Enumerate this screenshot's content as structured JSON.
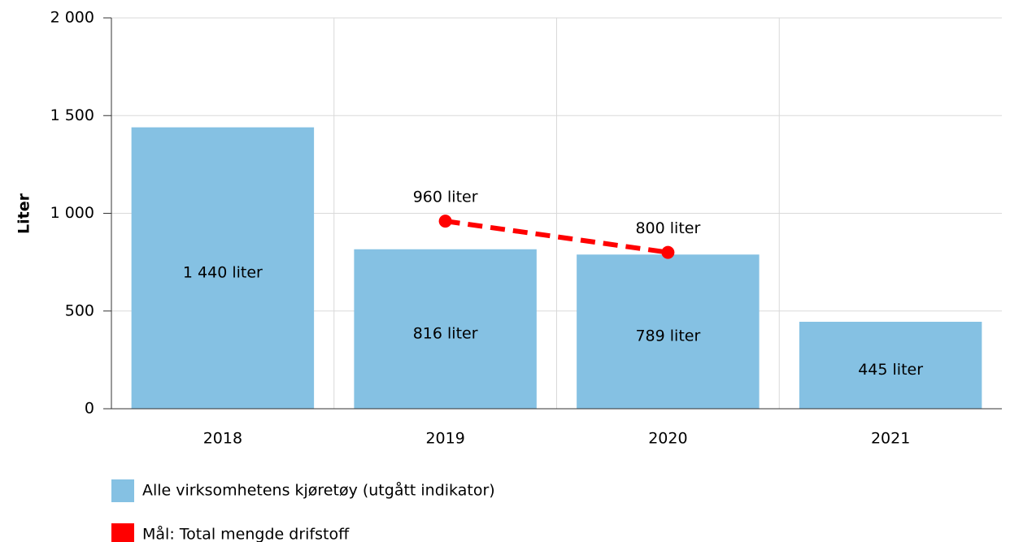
{
  "chart_data": {
    "type": "bar",
    "y_label": "Liter",
    "categories": [
      "2018",
      "2019",
      "2020",
      "2021"
    ],
    "series": [
      {
        "name": "Alle virksomhetens kjøretøy (utgått indikator)",
        "type": "bar",
        "color": "#85c1e3",
        "values": [
          1440,
          816,
          789,
          445
        ],
        "value_labels": [
          "1 440 liter",
          "816 liter",
          "789 liter",
          "445 liter"
        ]
      },
      {
        "name": "Mål: Total mengde drifstoff",
        "type": "line",
        "color": "#ff0000",
        "values": [
          null,
          960,
          800,
          null
        ],
        "value_labels": [
          null,
          "960 liter",
          "800 liter",
          null
        ]
      }
    ],
    "ylim": [
      0,
      2000
    ],
    "yticks": [
      0,
      500,
      {
        "value": 1000,
        "label": "1 000"
      },
      {
        "value": 1500,
        "label": "1 500"
      },
      {
        "value": 2000,
        "label": "2 000"
      }
    ],
    "grid": true
  }
}
